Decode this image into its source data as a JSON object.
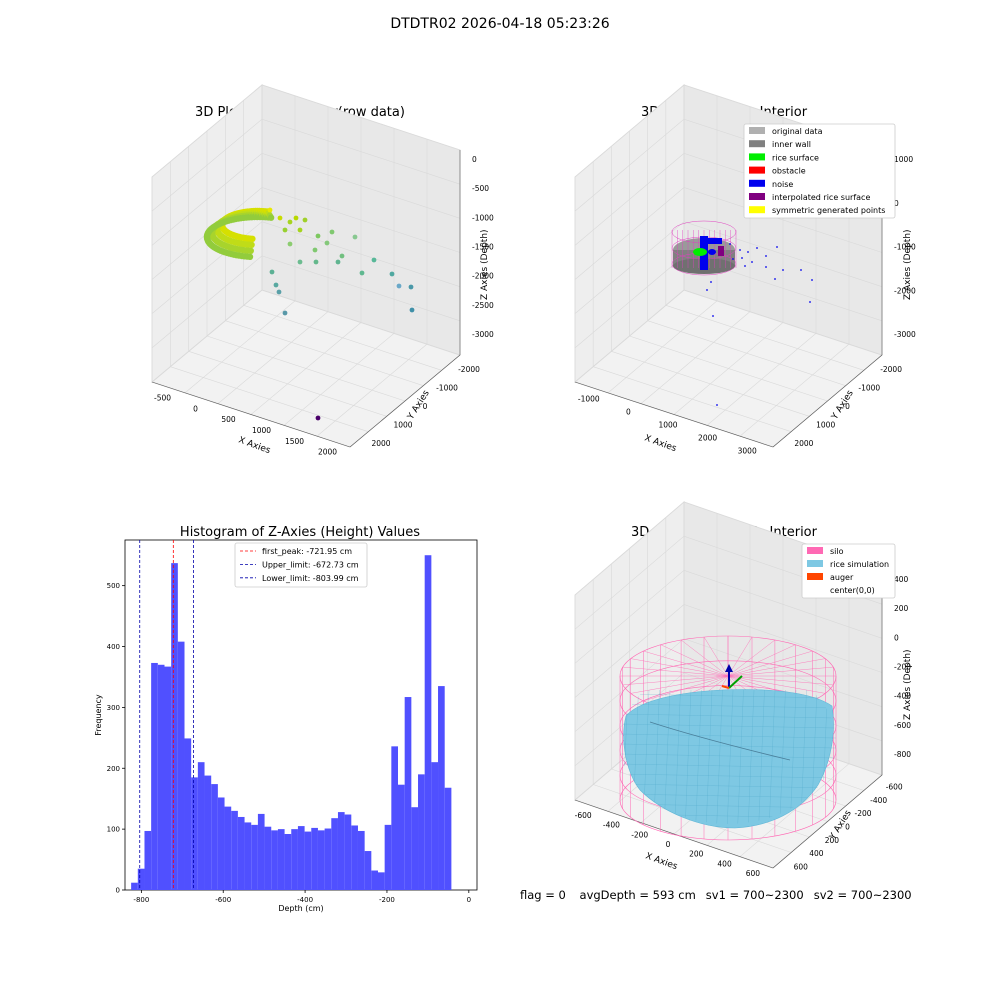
{
  "suptitle": "DTDTR02 2026-04-18 05:23:26",
  "status": {
    "flag": "flag = 0",
    "avg_depth": "avgDepth = 593 cm",
    "sv1": "sv1 = 700~2300",
    "sv2": "sv2 = 700~2300"
  },
  "colors": {
    "hist_bar": "#5050ff",
    "first_peak": "#ff0000",
    "limits": "#0000aa",
    "original_data": "#b0b0b0",
    "inner_wall": "#808080",
    "rice_surface": "#00ee00",
    "obstacle": "#ff0000",
    "noise": "#0000ee",
    "interpolated": "#800080",
    "symmetric": "#ffff00",
    "silo": "#ff69b4",
    "rice_sim": "#7ec8e3",
    "auger": "#ff4500"
  },
  "chart_data": [
    {
      "type": "scatter",
      "subtype": "3d",
      "title": "3D Plot of Silo Interior(row data)",
      "xlabel": "X Axies",
      "ylabel": "Y Axies",
      "zlabel": "Z Axies (Depth)",
      "xticks": [
        "-500",
        "0",
        "500",
        "1000",
        "1500",
        "2000"
      ],
      "yticks": [
        "-2000",
        "-1000",
        "0",
        "1000",
        "2000"
      ],
      "zticks": [
        "0",
        "-500",
        "-1000",
        "-1500",
        "-2000",
        "-2500",
        "-3000"
      ]
    },
    {
      "type": "scatter",
      "subtype": "3d",
      "title": "3D classify of Silo Interior",
      "xlabel": "X Axies",
      "ylabel": "Y Axies",
      "zlabel": "Z Axies (Depth)",
      "xticks": [
        "-1000",
        "0",
        "1000",
        "2000",
        "3000"
      ],
      "yticks": [
        "-2000",
        "-1000",
        "0",
        "1000",
        "2000"
      ],
      "zticks": [
        "1000",
        "0",
        "-1000",
        "-2000",
        "-3000"
      ],
      "legend_position": "top-right",
      "legend": [
        "original data",
        "inner wall",
        "rice surface",
        "obstacle",
        "noise",
        "interpolated rice surface",
        "symmetric generated points"
      ]
    },
    {
      "type": "bar",
      "subtype": "histogram",
      "title": "Histogram of Z-Axies (Height) Values",
      "xlabel": "Depth (cm)",
      "ylabel": "Frequency",
      "xlim": [
        -840,
        20
      ],
      "ylim": [
        0,
        575
      ],
      "xticks": [
        -800,
        -600,
        -400,
        -200,
        0
      ],
      "yticks": [
        0,
        100,
        200,
        300,
        400,
        500
      ],
      "bin_width": 16.3,
      "bin_start": -825,
      "values": [
        12,
        35,
        97,
        373,
        370,
        367,
        537,
        408,
        249,
        185,
        210,
        188,
        174,
        152,
        137,
        130,
        120,
        111,
        107,
        125,
        104,
        98,
        100,
        92,
        100,
        105,
        96,
        102,
        98,
        101,
        118,
        128,
        124,
        106,
        97,
        64,
        32,
        29,
        107,
        236,
        173,
        317,
        136,
        190,
        550,
        210,
        335,
        168
      ],
      "legend_position": "top-center",
      "lines": [
        {
          "label": "first_peak: -721.95 cm",
          "x": -721.95,
          "color": "#ff0000"
        },
        {
          "label": "Upper_limit: -672.73 cm",
          "x": -672.73,
          "color": "#0000aa"
        },
        {
          "label": "Lower_limit: -803.99 cm",
          "x": -803.99,
          "color": "#0000aa"
        }
      ]
    },
    {
      "type": "area",
      "subtype": "3d-surface",
      "title": "3D simulation of Silo Interior",
      "xlabel": "X Axies",
      "ylabel": "Y Axies",
      "zlabel": "Z Axies (Depth)",
      "xticks": [
        "-600",
        "-400",
        "-200",
        "0",
        "200",
        "400",
        "600"
      ],
      "yticks": [
        "-600",
        "-400",
        "-200",
        "0",
        "200",
        "400",
        "600"
      ],
      "zticks": [
        "400",
        "200",
        "0",
        "-200",
        "-400",
        "-600",
        "-800"
      ],
      "legend_position": "top-right",
      "legend": [
        "silo",
        "rice simulation",
        "auger",
        "center(0,0)"
      ]
    }
  ]
}
